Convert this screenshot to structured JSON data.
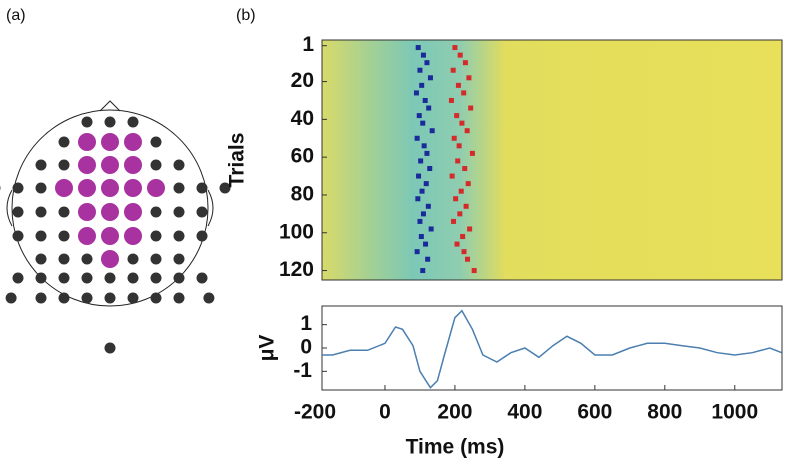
{
  "panel_labels": [
    "(a)",
    "(b)"
  ],
  "chart_data": [
    {
      "type": "scatter",
      "ylabel": "Trials",
      "ylim": [
        125,
        -2
      ],
      "xlim": [
        -180,
        1135
      ],
      "yticks": [
        1,
        20,
        40,
        60,
        80,
        100,
        120
      ],
      "series": [
        {
          "color": "#1a2a9a",
          "x": [
            95,
            110,
            120,
            100,
            130,
            105,
            90,
            115,
            125,
            98,
            108,
            135,
            92,
            112,
            120,
            102,
            128,
            96,
            118,
            106,
            94,
            124,
            110,
            100,
            132,
            104,
            116,
            92,
            122,
            108
          ],
          "values": [
            2,
            6,
            10,
            14,
            18,
            22,
            26,
            30,
            34,
            38,
            42,
            46,
            50,
            54,
            58,
            62,
            66,
            70,
            74,
            78,
            82,
            86,
            90,
            94,
            98,
            102,
            106,
            110,
            114,
            120
          ]
        },
        {
          "color": "#d42a2a",
          "x": [
            200,
            215,
            230,
            195,
            240,
            210,
            225,
            190,
            245,
            205,
            220,
            235,
            198,
            212,
            250,
            208,
            228,
            192,
            238,
            218,
            202,
            232,
            214,
            196,
            242,
            222,
            206,
            226,
            236,
            255
          ],
          "values": [
            2,
            6,
            10,
            14,
            18,
            22,
            26,
            30,
            34,
            38,
            42,
            46,
            50,
            54,
            58,
            62,
            66,
            70,
            74,
            78,
            82,
            86,
            90,
            94,
            98,
            102,
            106,
            110,
            114,
            120
          ]
        }
      ]
    },
    {
      "type": "line",
      "ylabel": "μV",
      "xlabel": "Time (ms)",
      "color": "#4a7fb0",
      "xlim": [
        -180,
        1135
      ],
      "ylim": [
        -1.8,
        1.8
      ],
      "xticks": [
        -200,
        0,
        200,
        400,
        600,
        800,
        1000
      ],
      "yticks": [
        1,
        0,
        -1
      ],
      "x": [
        -180,
        -150,
        -100,
        -50,
        0,
        30,
        50,
        80,
        100,
        130,
        150,
        170,
        200,
        220,
        250,
        280,
        320,
        360,
        400,
        440,
        480,
        520,
        560,
        600,
        650,
        700,
        750,
        800,
        850,
        900,
        950,
        1000,
        1050,
        1100,
        1134
      ],
      "values": [
        -0.3,
        -0.3,
        -0.1,
        -0.1,
        0.2,
        0.9,
        0.8,
        0.1,
        -1.0,
        -1.7,
        -1.4,
        -0.3,
        1.3,
        1.6,
        0.8,
        -0.3,
        -0.6,
        -0.2,
        0.0,
        -0.4,
        0.1,
        0.5,
        0.2,
        -0.3,
        -0.3,
        0.0,
        0.2,
        0.2,
        0.1,
        0.0,
        -0.2,
        -0.3,
        -0.2,
        0.0,
        -0.2
      ]
    }
  ]
}
